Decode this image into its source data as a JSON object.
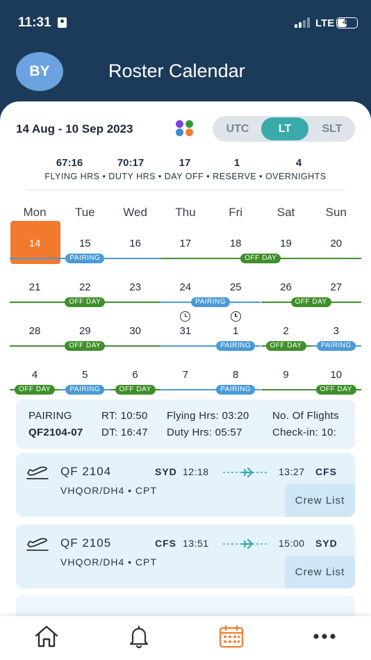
{
  "status_bar": {
    "time": "11:31",
    "network": "LTE",
    "battery": "49",
    "battery_level": 0.49
  },
  "header": {
    "avatar_initials": "BY",
    "title": "Roster Calendar"
  },
  "colors": {
    "header_bg": "#1c3b5a",
    "accent": "#3aa9a9",
    "today": "#f27a2e",
    "pairing": "#4a9ad8",
    "off_day": "#3f8f2a"
  },
  "calendar": {
    "date_range": "14 Aug - 10 Sep 2023",
    "timezone_options": [
      "UTC",
      "LT",
      "SLT"
    ],
    "timezone_selected": "LT",
    "stats": [
      {
        "value": "67:16",
        "label": "FLYING HRS"
      },
      {
        "value": "70:17",
        "label": "DUTY HRS"
      },
      {
        "value": "17",
        "label": "DAY OFF"
      },
      {
        "value": "1",
        "label": "RESERVE"
      },
      {
        "value": "4",
        "label": "OVERNIGHTS"
      }
    ],
    "stat_separator": " • ",
    "weekdays": [
      "Mon",
      "Tue",
      "Wed",
      "Thu",
      "Fri",
      "Sat",
      "Sun"
    ],
    "pairing_label": "PAIRING",
    "off_day_label": "OFF DAY",
    "weeks": [
      {
        "days": [
          "14",
          "15",
          "16",
          "17",
          "18",
          "19",
          "20"
        ],
        "today_index": 0,
        "clock_days": [],
        "segments": [
          {
            "from": 0,
            "to": 3,
            "type": "pairing",
            "badge_at": 1
          },
          {
            "from": 3,
            "to": 7,
            "type": "off",
            "badge_at": 4.5
          }
        ]
      },
      {
        "days": [
          "21",
          "22",
          "23",
          "24",
          "25",
          "26",
          "27"
        ],
        "today_index": -1,
        "clock_days": [
          3,
          4
        ],
        "segments": [
          {
            "from": 0,
            "to": 3,
            "type": "off",
            "badge_at": 1
          },
          {
            "from": 3,
            "to": 5,
            "type": "pairing",
            "badge_at": 3.5
          },
          {
            "from": 5,
            "to": 7,
            "type": "off",
            "badge_at": 5.5
          }
        ]
      },
      {
        "days": [
          "28",
          "29",
          "30",
          "31",
          "1",
          "2",
          "3"
        ],
        "today_index": -1,
        "clock_days": [],
        "segments": [
          {
            "from": 0,
            "to": 3,
            "type": "off",
            "badge_at": 1
          },
          {
            "from": 3,
            "to": 5,
            "type": "pairing",
            "badge_at": 4
          },
          {
            "from": 5,
            "to": 6,
            "type": "off",
            "badge_at": 5
          },
          {
            "from": 6,
            "to": 7,
            "type": "pairing",
            "badge_at": 6
          }
        ]
      },
      {
        "days": [
          "4",
          "5",
          "6",
          "7",
          "8",
          "9",
          "10"
        ],
        "today_index": -1,
        "clock_days": [],
        "segments": [
          {
            "from": 0,
            "to": 1,
            "type": "off",
            "badge_at": 0
          },
          {
            "from": 1,
            "to": 2,
            "type": "pairing",
            "badge_at": 1
          },
          {
            "from": 2,
            "to": 3,
            "type": "off",
            "badge_at": 2
          },
          {
            "from": 3,
            "to": 5,
            "type": "pairing",
            "badge_at": 4
          },
          {
            "from": 5,
            "to": 7,
            "type": "off",
            "badge_at": 6
          }
        ]
      }
    ]
  },
  "pairing_summary": {
    "label": "PAIRING",
    "code": "QF2104-07",
    "rt": "RT:  10:50",
    "dt": "DT:  16:47",
    "flying_hrs": "Flying Hrs:  03:20",
    "duty_hrs": "Duty Hrs:  05:57",
    "no_of_flights": "No. Of Flights",
    "check_in": "Check-in:  10:"
  },
  "flights": [
    {
      "number": "QF 2104",
      "sub": "VHQOR/DH4 • CPT",
      "from": "SYD",
      "dep_time": "12:18",
      "arr_time": "13:27",
      "to": "CFS",
      "crew_label": "Crew List"
    },
    {
      "number": "QF 2105",
      "sub": "VHQOR/DH4 • CPT",
      "from": "CFS",
      "dep_time": "13:51",
      "arr_time": "15:00",
      "to": "SYD",
      "crew_label": "Crew List"
    }
  ],
  "tab_bar": {
    "tabs": [
      {
        "icon": "home-icon"
      },
      {
        "icon": "bell-icon"
      },
      {
        "icon": "calendar-icon",
        "active": true
      },
      {
        "icon": "more-icon"
      }
    ]
  }
}
